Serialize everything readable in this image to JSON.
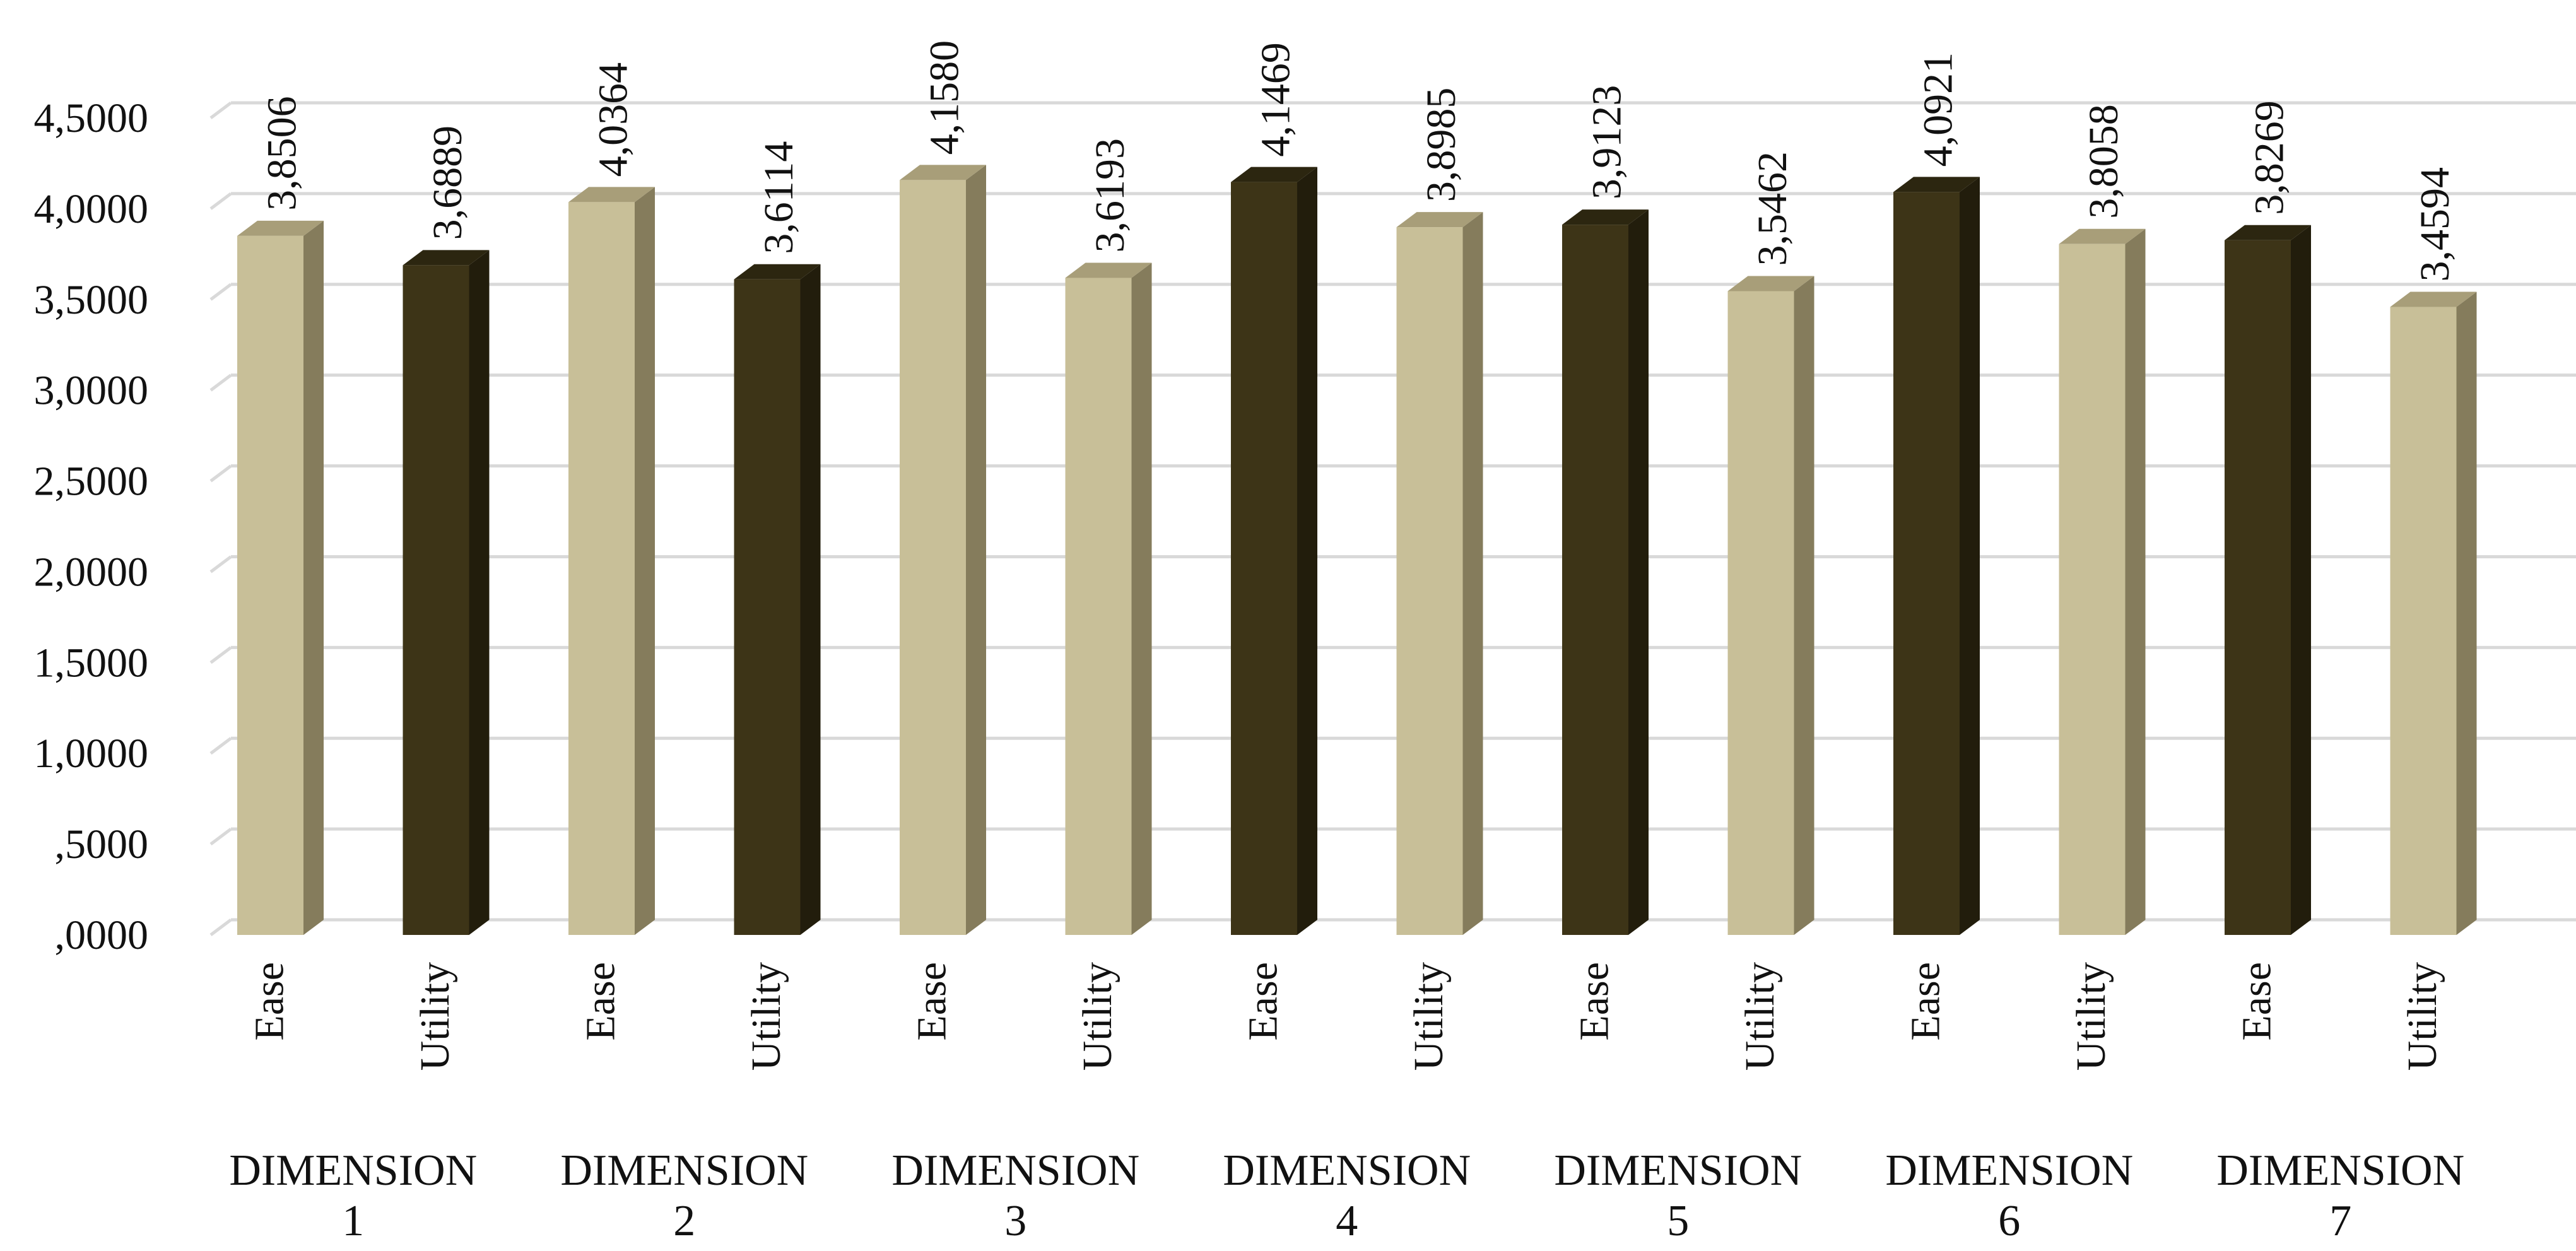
{
  "chart_data": {
    "type": "bar",
    "style": "3d-column",
    "title": "",
    "xlabel": "",
    "ylabel": "",
    "ylim": [
      0,
      4.5
    ],
    "y_ticks": [
      ",0000",
      ",5000",
      "1,0000",
      "1,5000",
      "2,0000",
      "2,5000",
      "3,0000",
      "3,5000",
      "4,0000",
      "4,5000"
    ],
    "grid": true,
    "legend": "none",
    "colors": {
      "light_front": "#c8bf98",
      "light_side": "#857c5c",
      "light_top": "#a89e79",
      "dark_front": "#3d3417",
      "dark_side": "#221d0c",
      "dark_top": "#2c2610",
      "grid": "#d9d9d9"
    },
    "groups": [
      {
        "label_line1": "DIMENSION",
        "label_line2": "1",
        "bars": [
          {
            "category": "Ease",
            "value": 3.8506,
            "label": "3,8506",
            "tone": "light"
          },
          {
            "category": "Utility",
            "value": 3.6889,
            "label": "3,6889",
            "tone": "dark"
          }
        ]
      },
      {
        "label_line1": "DIMENSION",
        "label_line2": "2",
        "bars": [
          {
            "category": "Ease",
            "value": 4.0364,
            "label": "4,0364",
            "tone": "light"
          },
          {
            "category": "Utility",
            "value": 3.6114,
            "label": "3,6114",
            "tone": "dark"
          }
        ]
      },
      {
        "label_line1": "DIMENSION",
        "label_line2": "3",
        "bars": [
          {
            "category": "Ease",
            "value": 4.158,
            "label": "4,1580",
            "tone": "light"
          },
          {
            "category": "Utility",
            "value": 3.6193,
            "label": "3,6193",
            "tone": "light"
          }
        ]
      },
      {
        "label_line1": "DIMENSION",
        "label_line2": "4",
        "bars": [
          {
            "category": "Ease",
            "value": 4.1469,
            "label": "4,1469",
            "tone": "dark"
          },
          {
            "category": "Utility",
            "value": 3.8985,
            "label": "3,8985",
            "tone": "light"
          }
        ]
      },
      {
        "label_line1": "DIMENSION",
        "label_line2": "5",
        "bars": [
          {
            "category": "Ease",
            "value": 3.9123,
            "label": "3,9123",
            "tone": "dark"
          },
          {
            "category": "Utility",
            "value": 3.5462,
            "label": "3,5462",
            "tone": "light"
          }
        ]
      },
      {
        "label_line1": "DIMENSION",
        "label_line2": "6",
        "bars": [
          {
            "category": "Ease",
            "value": 4.0921,
            "label": "4,0921",
            "tone": "dark"
          },
          {
            "category": "Utility",
            "value": 3.8058,
            "label": "3,8058",
            "tone": "light"
          }
        ]
      },
      {
        "label_line1": "DIMENSION",
        "label_line2": "7",
        "bars": [
          {
            "category": "Ease",
            "value": 3.8269,
            "label": "3,8269",
            "tone": "dark"
          },
          {
            "category": "Utility",
            "value": 3.4594,
            "label": "3,4594",
            "tone": "light"
          }
        ]
      }
    ]
  }
}
